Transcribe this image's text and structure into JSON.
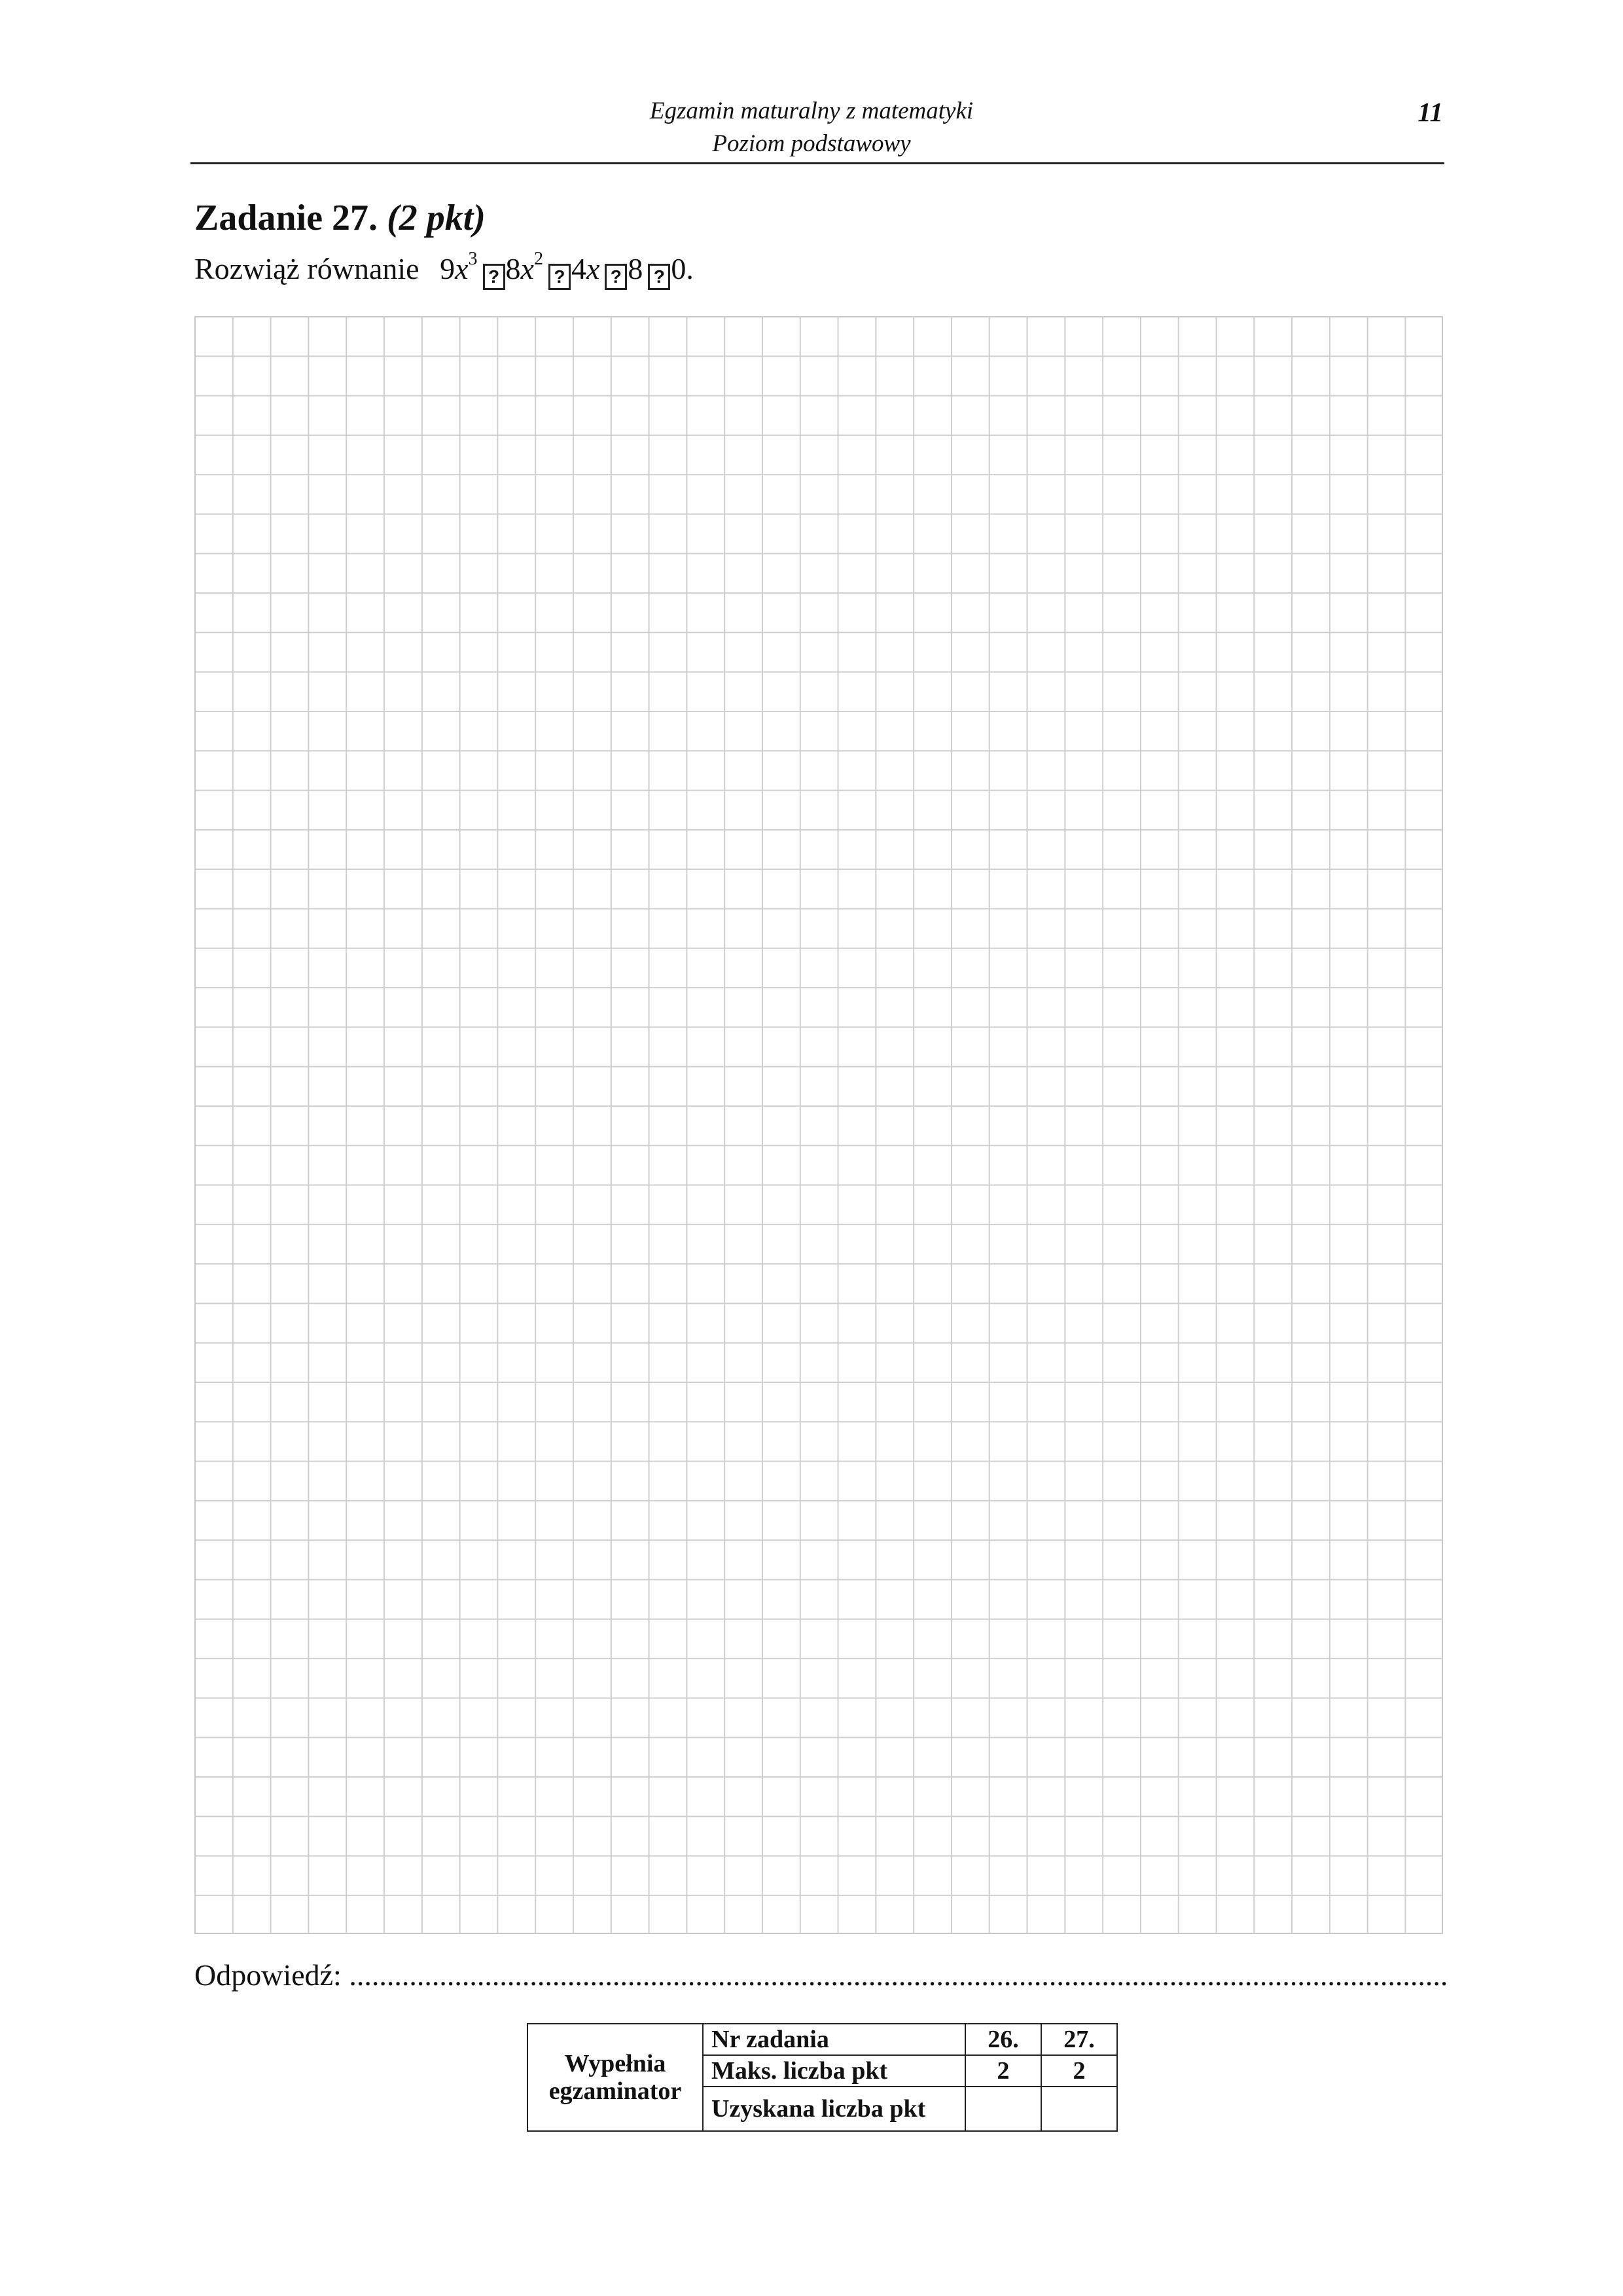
{
  "header": {
    "title_line1": "Egzamin maturalny z matematyki",
    "title_line2": "Poziom podstawowy",
    "page_number": "11"
  },
  "task": {
    "title": "Zadanie 27.",
    "points": "(2 pkt)",
    "instruction": "Rozwiąż równanie",
    "equation": {
      "t1_coef": "9",
      "t1_var": "x",
      "t1_exp": "3",
      "t2_coef": "8",
      "t2_var": "x",
      "t2_exp": "2",
      "t3_var": "x",
      "t3_partial": "4",
      "t4_partial": "8",
      "rhs_partial": "0",
      "end": ".",
      "missing_glyph": "?"
    }
  },
  "answer": {
    "label": "Odpowiedź:",
    "dots": "................................................................................................................................................................................................................................................................................................ ."
  },
  "score_table": {
    "filled_by": [
      "Wypełnia",
      "egzaminator"
    ],
    "rows": [
      {
        "label": "Nr zadania",
        "values": [
          "26.",
          "27."
        ]
      },
      {
        "label": "Maks. liczba pkt",
        "values": [
          "2",
          "2"
        ]
      },
      {
        "label": "Uzyskana liczba pkt",
        "values": [
          "",
          ""
        ]
      }
    ]
  }
}
